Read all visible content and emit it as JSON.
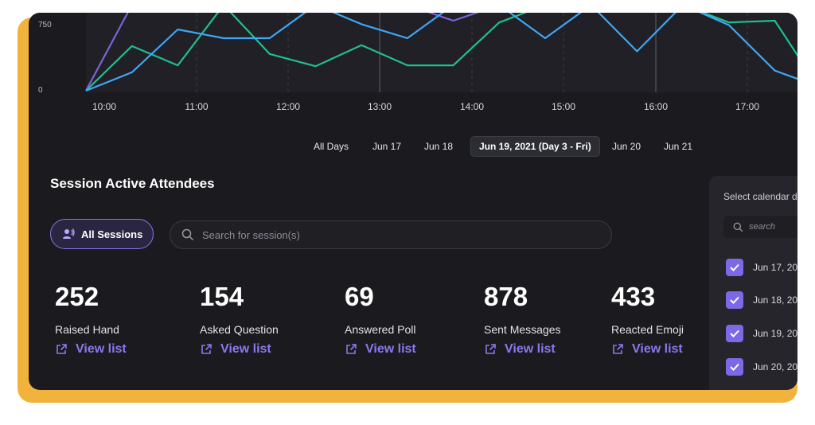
{
  "chart": {
    "y_ticks": [
      "750",
      "0"
    ],
    "x_ticks": [
      "10:00",
      "11:00",
      "12:00",
      "13:00",
      "14:00",
      "15:00",
      "16:00",
      "17:00"
    ],
    "colors": {
      "blue": "#3ea6f5",
      "green": "#1fbf8f",
      "purple": "#7b62d6",
      "grid": "#3a3a42"
    }
  },
  "chart_data": {
    "type": "line",
    "x": [
      "09:50",
      "10:20",
      "10:50",
      "11:20",
      "11:50",
      "12:20",
      "12:50",
      "13:20",
      "13:50",
      "14:20",
      "14:50",
      "15:20",
      "15:50",
      "16:20",
      "16:50",
      "17:20",
      "17:50"
    ],
    "y_ticks": [
      "0",
      "750"
    ],
    "series": [
      {
        "values": [
          0,
          210,
          700,
          600,
          600,
          980,
          760,
          600,
          980,
          980,
          600,
          980,
          450,
          980,
          750,
          230,
          40
        ]
      },
      {
        "values": [
          0,
          510,
          290,
          980,
          420,
          280,
          520,
          290,
          290,
          780,
          980,
          980,
          980,
          980,
          780,
          800,
          0
        ]
      },
      {
        "values": [
          0,
          980,
          980,
          980,
          980,
          980,
          980,
          980,
          800,
          980,
          980,
          980,
          980,
          980,
          980,
          980,
          980
        ]
      }
    ]
  },
  "day_tabs": [
    "All Days",
    "Jun 17",
    "Jun 18",
    "Jun 19, 2021 (Day 3 - Fri)",
    "Jun 20",
    "Jun 21"
  ],
  "section_title": "Session Active Attendees",
  "filter_button": "All Sessions",
  "search_placeholder": "Search for session(s)",
  "stats": [
    {
      "value": "252",
      "label": "Raised Hand",
      "link": "View list"
    },
    {
      "value": "154",
      "label": "Asked Question",
      "link": "View list"
    },
    {
      "value": "69",
      "label": "Answered Poll",
      "link": "View list"
    },
    {
      "value": "878",
      "label": "Sent Messages",
      "link": "View list"
    },
    {
      "value": "433",
      "label": "Reacted Emoji",
      "link": "View list"
    }
  ],
  "calendar_panel": {
    "title": "Select calendar d",
    "search_placeholder": "search",
    "items": [
      "Jun 17, 202",
      "Jun 18, 202",
      "Jun 19, 202",
      "Jun 20, 202"
    ]
  }
}
